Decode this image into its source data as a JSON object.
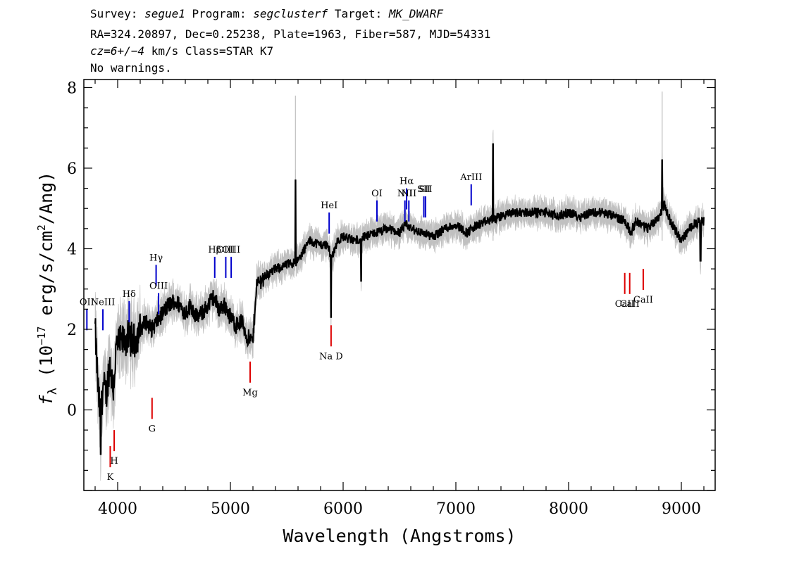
{
  "header": {
    "survey_label": "Survey:",
    "survey": "segue1",
    "program_label": "Program:",
    "program": "segclusterf",
    "target_label": "Target:",
    "target": "MK_DWARF",
    "line2": "RA=324.20897, Dec=0.25238, Plate=1963, Fiber=587, MJD=54331",
    "cz_value": "cz=6+/−4",
    "cz_rest": " km/s Class=STAR K7",
    "line4": "No warnings."
  },
  "chart_data": {
    "type": "line",
    "xlabel": "Wavelength (Angstroms)",
    "ylabel_prefix": "f",
    "ylabel_sub": "λ",
    "ylabel_main": " (10",
    "ylabel_exp": "−17",
    "ylabel_rest": " erg/s/cm",
    "ylabel_sq": "2",
    "ylabel_end": "/Ang)",
    "xlim": [
      3700,
      9300
    ],
    "ylim": [
      -2,
      8.2
    ],
    "xticks": [
      4000,
      5000,
      6000,
      7000,
      8000,
      9000
    ],
    "xtick_labels": [
      "4000",
      "5000",
      "6000",
      "7000",
      "8000",
      "9000"
    ],
    "yticks": [
      0,
      2,
      4,
      6,
      8
    ],
    "ytick_labels": [
      "0",
      "2",
      "4",
      "6",
      "8"
    ],
    "colors": {
      "flux": "#000000",
      "error_band": "#c0c0c0",
      "emission": "#0000cc",
      "absorption": "#dd0000"
    },
    "flux_knots": [
      [
        3800,
        2.0
      ],
      [
        3830,
        0.3
      ],
      [
        3850,
        -0.2
      ],
      [
        3870,
        0.6
      ],
      [
        3900,
        0.4
      ],
      [
        3930,
        1.2
      ],
      [
        3960,
        0.5
      ],
      [
        3990,
        1.6
      ],
      [
        4050,
        1.7
      ],
      [
        4100,
        1.8
      ],
      [
        4150,
        1.7
      ],
      [
        4200,
        2.0
      ],
      [
        4250,
        2.2
      ],
      [
        4300,
        2.0
      ],
      [
        4350,
        2.2
      ],
      [
        4400,
        2.4
      ],
      [
        4450,
        2.6
      ],
      [
        4500,
        2.7
      ],
      [
        4550,
        2.6
      ],
      [
        4600,
        2.4
      ],
      [
        4650,
        2.6
      ],
      [
        4700,
        2.3
      ],
      [
        4750,
        2.4
      ],
      [
        4800,
        2.6
      ],
      [
        4850,
        2.8
      ],
      [
        4900,
        2.5
      ],
      [
        4950,
        2.6
      ],
      [
        5000,
        2.3
      ],
      [
        5050,
        2.1
      ],
      [
        5100,
        2.2
      ],
      [
        5150,
        1.8
      ],
      [
        5200,
        1.7
      ],
      [
        5230,
        3.1
      ],
      [
        5300,
        3.3
      ],
      [
        5400,
        3.5
      ],
      [
        5500,
        3.6
      ],
      [
        5600,
        3.7
      ],
      [
        5700,
        4.2
      ],
      [
        5800,
        4.1
      ],
      [
        5860,
        4.1
      ],
      [
        5900,
        3.8
      ],
      [
        5950,
        4.2
      ],
      [
        6000,
        4.3
      ],
      [
        6100,
        4.2
      ],
      [
        6200,
        4.3
      ],
      [
        6300,
        4.4
      ],
      [
        6400,
        4.5
      ],
      [
        6500,
        4.4
      ],
      [
        6560,
        4.6
      ],
      [
        6600,
        4.5
      ],
      [
        6700,
        4.4
      ],
      [
        6800,
        4.3
      ],
      [
        6900,
        4.5
      ],
      [
        7000,
        4.6
      ],
      [
        7100,
        4.4
      ],
      [
        7200,
        4.6
      ],
      [
        7300,
        4.7
      ],
      [
        7400,
        4.8
      ],
      [
        7500,
        4.9
      ],
      [
        7600,
        4.9
      ],
      [
        7700,
        4.9
      ],
      [
        7800,
        4.9
      ],
      [
        7900,
        4.8
      ],
      [
        8000,
        4.9
      ],
      [
        8100,
        4.8
      ],
      [
        8200,
        4.9
      ],
      [
        8300,
        4.9
      ],
      [
        8400,
        4.8
      ],
      [
        8500,
        4.7
      ],
      [
        8550,
        4.4
      ],
      [
        8600,
        4.7
      ],
      [
        8700,
        4.5
      ],
      [
        8800,
        4.8
      ],
      [
        8850,
        5.1
      ],
      [
        8900,
        4.7
      ],
      [
        9000,
        4.2
      ],
      [
        9100,
        4.6
      ],
      [
        9200,
        4.7
      ]
    ],
    "flux_features": [
      [
        5577,
        5.7
      ],
      [
        5893,
        2.3
      ],
      [
        6160,
        3.2
      ],
      [
        7330,
        6.6
      ],
      [
        8830,
        6.2
      ],
      [
        3850,
        -1.1
      ],
      [
        9170,
        3.7
      ]
    ],
    "emission_lines": [
      {
        "label": "OII",
        "x": 3727,
        "y": 2.5
      },
      {
        "label": "NeIII",
        "x": 3869,
        "y": 2.5
      },
      {
        "label": "Hδ",
        "x": 4102,
        "y": 2.7
      },
      {
        "label": "Hγ",
        "x": 4341,
        "y": 3.6
      },
      {
        "label": "OIII",
        "x": 4363,
        "y": 2.9
      },
      {
        "label": "Hβ",
        "x": 4861,
        "y": 3.8
      },
      {
        "label": "OIII",
        "x": 4959,
        "y": 3.8
      },
      {
        "label": "OIII",
        "x": 5007,
        "y": 3.8
      },
      {
        "label": "HeI",
        "x": 5876,
        "y": 4.9
      },
      {
        "label": "OI",
        "x": 6300,
        "y": 5.2
      },
      {
        "label": "NII",
        "x": 6548,
        "y": 5.2
      },
      {
        "label": "Hα",
        "x": 6563,
        "y": 5.5
      },
      {
        "label": "NII",
        "x": 6583,
        "y": 5.2
      },
      {
        "label": "SII",
        "x": 6716,
        "y": 5.3
      },
      {
        "label": "SII",
        "x": 6731,
        "y": 5.3
      },
      {
        "label": "ArIII",
        "x": 7136,
        "y": 5.6
      }
    ],
    "absorption_lines": [
      {
        "label": "K",
        "x": 3934,
        "y": -0.9
      },
      {
        "label": "H",
        "x": 3969,
        "y": -0.5
      },
      {
        "label": "G",
        "x": 4305,
        "y": 0.3
      },
      {
        "label": "Mg",
        "x": 5175,
        "y": 1.2
      },
      {
        "label": "Na D",
        "x": 5893,
        "y": 2.1
      },
      {
        "label": "CaII",
        "x": 8498,
        "y": 3.4
      },
      {
        "label": "CaII",
        "x": 8542,
        "y": 3.4
      },
      {
        "label": "CaII",
        "x": 8662,
        "y": 3.5
      }
    ]
  }
}
